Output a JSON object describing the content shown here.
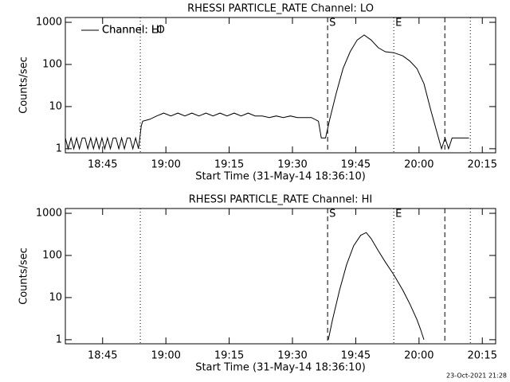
{
  "chart_data": [
    {
      "type": "line",
      "title": "RHESSI PARTICLE_RATE Channel: LO",
      "xlabel": "Start Time (31-May-14 18:36:10)",
      "ylabel": "Counts/sec",
      "x": [
        0,
        40,
        80,
        120,
        160,
        200,
        240,
        280,
        320,
        360,
        400,
        440,
        480,
        520,
        560,
        600,
        640,
        680,
        720,
        760,
        800,
        840,
        880,
        920,
        960,
        1000,
        1040,
        1080,
        1100,
        1200,
        1300,
        1400,
        1500,
        1600,
        1700,
        1800,
        1900,
        2000,
        2100,
        2200,
        2300,
        2400,
        2500,
        2600,
        2700,
        2800,
        2900,
        3000,
        3100,
        3200,
        3300,
        3400,
        3500,
        3600,
        3640,
        3700,
        3760,
        3850,
        3950,
        4050,
        4150,
        4250,
        4350,
        4450,
        4550,
        4671,
        4800,
        4900,
        5000,
        5100,
        5200,
        5300,
        5350,
        5400,
        5450,
        5500,
        5740
      ],
      "series": [
        {
          "name": "Channel: LO",
          "color": "#000000",
          "values": [
            1.8,
            1,
            1.8,
            1,
            1.8,
            1,
            1.8,
            1.8,
            1,
            1.8,
            1,
            1.8,
            1,
            1.8,
            1,
            1.8,
            1,
            1.8,
            1.8,
            1,
            1.8,
            1,
            1.8,
            1.8,
            1,
            1.8,
            1,
            3.5,
            4.5,
            5,
            6,
            7,
            6,
            7,
            6,
            7,
            6,
            7,
            6,
            7,
            6,
            7,
            6,
            7,
            6,
            6,
            5.5,
            6,
            5.5,
            6,
            5.5,
            5.5,
            5.5,
            4.5,
            1.8,
            1.8,
            5,
            20,
            80,
            200,
            380,
            500,
            380,
            250,
            200,
            190,
            160,
            120,
            80,
            35,
            8,
            2,
            1,
            1.8,
            1,
            1.8,
            1.8
          ]
        }
      ],
      "xlim": [
        0,
        6120
      ],
      "ylim": [
        0.8,
        1300
      ],
      "log_y": true,
      "legend": "upper left",
      "xticks": [
        {
          "value": 530,
          "label": "18:45"
        },
        {
          "value": 1430,
          "label": "19:00"
        },
        {
          "value": 2330,
          "label": "19:15"
        },
        {
          "value": 3230,
          "label": "19:30"
        },
        {
          "value": 4130,
          "label": "19:45"
        },
        {
          "value": 5030,
          "label": "20:00"
        },
        {
          "value": 5930,
          "label": "20:15"
        }
      ],
      "yticks": [
        1,
        10,
        100,
        1000
      ],
      "vlines": [
        {
          "x": 1066,
          "style": "dotted"
        },
        {
          "x": 3730,
          "style": "dashed",
          "label": "S"
        },
        {
          "x": 4671,
          "style": "dotted",
          "label": "E"
        },
        {
          "x": 5397,
          "style": "dashed"
        },
        {
          "x": 5760,
          "style": "dotted"
        }
      ]
    },
    {
      "type": "line",
      "title": "RHESSI PARTICLE_RATE Channel: HI",
      "xlabel": "Start Time (31-May-14 18:36:10)",
      "ylabel": "Counts/sec",
      "x": [
        3740,
        3800,
        3900,
        4000,
        4100,
        4200,
        4280,
        4350,
        4450,
        4550,
        4671,
        4800,
        4900,
        5000,
        5050,
        5100
      ],
      "series": [
        {
          "name": "Channel: HI",
          "color": "#000000",
          "values": [
            1,
            3,
            15,
            60,
            170,
            300,
            350,
            250,
            130,
            70,
            35,
            15,
            7,
            3,
            1.8,
            1
          ]
        }
      ],
      "xlim": [
        0,
        6120
      ],
      "ylim": [
        0.8,
        1300
      ],
      "log_y": true,
      "legend": "upper left",
      "xticks": [
        {
          "value": 530,
          "label": "18:45"
        },
        {
          "value": 1430,
          "label": "19:00"
        },
        {
          "value": 2330,
          "label": "19:15"
        },
        {
          "value": 3230,
          "label": "19:30"
        },
        {
          "value": 4130,
          "label": "19:45"
        },
        {
          "value": 5030,
          "label": "20:00"
        },
        {
          "value": 5930,
          "label": "20:15"
        }
      ],
      "yticks": [
        1,
        10,
        100,
        1000
      ],
      "vlines": [
        {
          "x": 1066,
          "style": "dotted"
        },
        {
          "x": 3730,
          "style": "dashed",
          "label": "S"
        },
        {
          "x": 4671,
          "style": "dotted",
          "label": "E"
        },
        {
          "x": 5397,
          "style": "dashed"
        },
        {
          "x": 5760,
          "style": "dotted"
        }
      ]
    }
  ],
  "footer": "23-Oct-2021 21:28"
}
